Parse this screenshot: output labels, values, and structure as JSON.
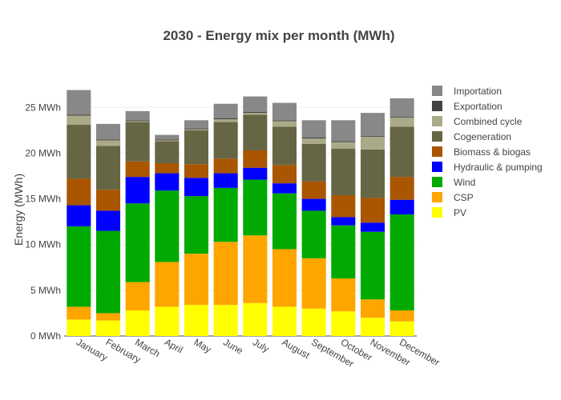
{
  "chart_data": {
    "type": "bar",
    "stacked": true,
    "title": "2030 - Energy mix per month (MWh)",
    "xlabel": "",
    "ylabel": "Energy (MWh)",
    "ylim": [
      0,
      28
    ],
    "yticks": [
      0,
      5,
      10,
      15,
      20,
      25
    ],
    "ytick_labels": [
      "0 MWh",
      "5 MWh",
      "10 MWh",
      "15 MWh",
      "20 MWh",
      "25 MWh"
    ],
    "grid": true,
    "legend_position": "right",
    "categories": [
      "January",
      "February",
      "March",
      "April",
      "May",
      "June",
      "July",
      "August",
      "September",
      "October",
      "November",
      "December"
    ],
    "series": [
      {
        "name": "PV",
        "color": "#ffff00",
        "values": [
          1.8,
          1.7,
          2.8,
          3.2,
          3.4,
          3.4,
          3.6,
          3.2,
          3.0,
          2.7,
          2.0,
          1.6
        ]
      },
      {
        "name": "CSP",
        "color": "#ffa500",
        "values": [
          1.4,
          0.8,
          3.1,
          4.9,
          5.6,
          6.9,
          7.4,
          6.3,
          5.5,
          3.6,
          2.0,
          1.2
        ]
      },
      {
        "name": "Wind",
        "color": "#00aa00",
        "values": [
          8.8,
          9.0,
          8.6,
          7.8,
          6.3,
          5.9,
          6.1,
          6.1,
          5.2,
          5.8,
          7.4,
          10.5
        ]
      },
      {
        "name": "Hydraulic & pumping",
        "color": "#0000ff",
        "values": [
          2.3,
          2.2,
          2.9,
          1.9,
          2.0,
          1.6,
          1.3,
          1.1,
          1.3,
          0.9,
          1.0,
          1.6
        ]
      },
      {
        "name": "Biomass & biogas",
        "color": "#aa5500",
        "values": [
          2.9,
          2.3,
          1.7,
          1.1,
          1.5,
          1.6,
          1.9,
          2.0,
          1.9,
          2.4,
          2.7,
          2.5
        ]
      },
      {
        "name": "Cogeneration",
        "color": "#666644",
        "values": [
          5.9,
          4.8,
          4.3,
          2.4,
          3.7,
          4.0,
          3.9,
          4.2,
          4.1,
          5.1,
          5.3,
          5.5
        ]
      },
      {
        "name": "Combined cycle",
        "color": "#aaaa88",
        "values": [
          1.0,
          0.6,
          0.1,
          0.1,
          0.1,
          0.3,
          0.2,
          0.6,
          0.6,
          0.7,
          1.4,
          1.0
        ]
      },
      {
        "name": "Exportation",
        "color": "#444444",
        "values": [
          0.1,
          0.1,
          0.1,
          0.1,
          0.1,
          0.1,
          0.1,
          0.1,
          0.1,
          0.1,
          0.1,
          0.1
        ]
      },
      {
        "name": "Importation",
        "color": "#888888",
        "values": [
          2.7,
          1.7,
          1.0,
          0.5,
          0.9,
          1.6,
          1.7,
          1.9,
          1.9,
          2.3,
          2.5,
          2.0
        ]
      }
    ],
    "legend_order": [
      "Importation",
      "Exportation",
      "Combined cycle",
      "Cogeneration",
      "Biomass & biogas",
      "Hydraulic & pumping",
      "Wind",
      "CSP",
      "PV"
    ]
  }
}
